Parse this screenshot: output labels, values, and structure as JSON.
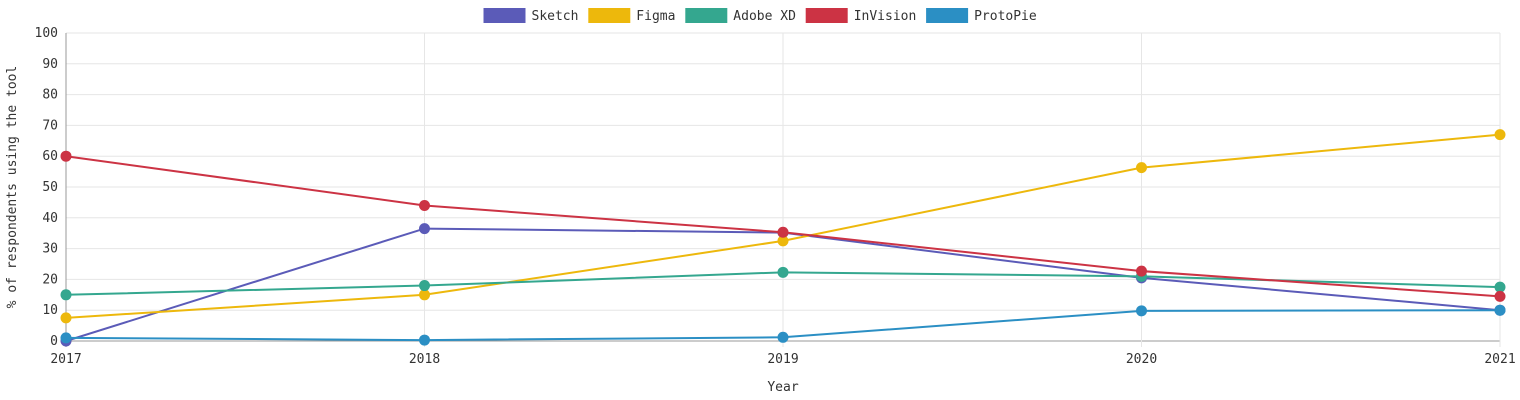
{
  "chart_data": {
    "type": "line",
    "x": [
      "2017",
      "2018",
      "2019",
      "2020",
      "2021"
    ],
    "xlabel": "Year",
    "ylabel": "% of respondents using the tool",
    "ylim": [
      0,
      100
    ],
    "yticks": [
      "0",
      "10",
      "20",
      "30",
      "40",
      "50",
      "60",
      "70",
      "80",
      "90",
      "100"
    ],
    "grid": true,
    "legend_position": "top",
    "series": [
      {
        "name": "Sketch",
        "color": "#5b5bb8",
        "values": [
          0,
          36.5,
          35.2,
          20.5,
          10
        ]
      },
      {
        "name": "Figma",
        "color": "#edb80c",
        "values": [
          7.5,
          15,
          32.5,
          56.3,
          67
        ]
      },
      {
        "name": "Adobe XD",
        "color": "#34a78f",
        "values": [
          15,
          18,
          22.3,
          21,
          17.5
        ]
      },
      {
        "name": "InVision",
        "color": "#cc3344",
        "values": [
          60,
          44,
          35.3,
          22.7,
          14.5
        ]
      },
      {
        "name": "ProtoPie",
        "color": "#2b8fc4",
        "values": [
          1,
          0.3,
          1.2,
          9.8,
          10
        ]
      }
    ]
  }
}
